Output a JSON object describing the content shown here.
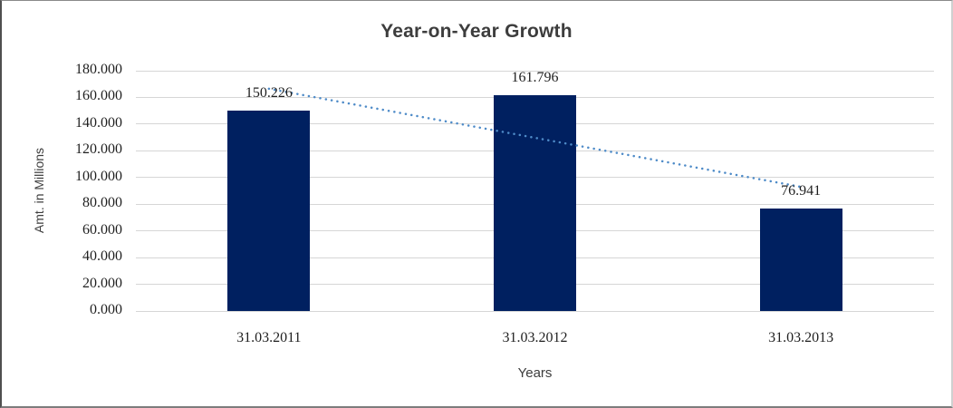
{
  "chart_data": {
    "type": "bar",
    "title": "Year-on-Year Growth",
    "categories": [
      "31.03.2011",
      "31.03.2012",
      "31.03.2013"
    ],
    "values": [
      150.226,
      161.796,
      76.941
    ],
    "data_labels": [
      "150.226",
      "161.796",
      "76.941"
    ],
    "xlabel": "Years",
    "ylabel": "Amt. in Millions",
    "ylim": [
      0,
      180
    ],
    "ytick_interval": 20,
    "ytick_labels": [
      "180.000",
      "160.000",
      "140.000",
      "120.000",
      "100.000",
      "80.000",
      "60.000",
      "40.000",
      "20.000",
      "0.000"
    ],
    "grid": true,
    "legend": false,
    "trendline": {
      "type": "linear",
      "line_style": "dotted",
      "start_value": 166.5,
      "end_value": 93.0
    },
    "colors": {
      "bar": "#002060",
      "trendline": "#4e8bc8",
      "gridline": "#d6d6d6",
      "title_text": "#3d3d3d",
      "tick_text": "#1f1f1f"
    }
  }
}
